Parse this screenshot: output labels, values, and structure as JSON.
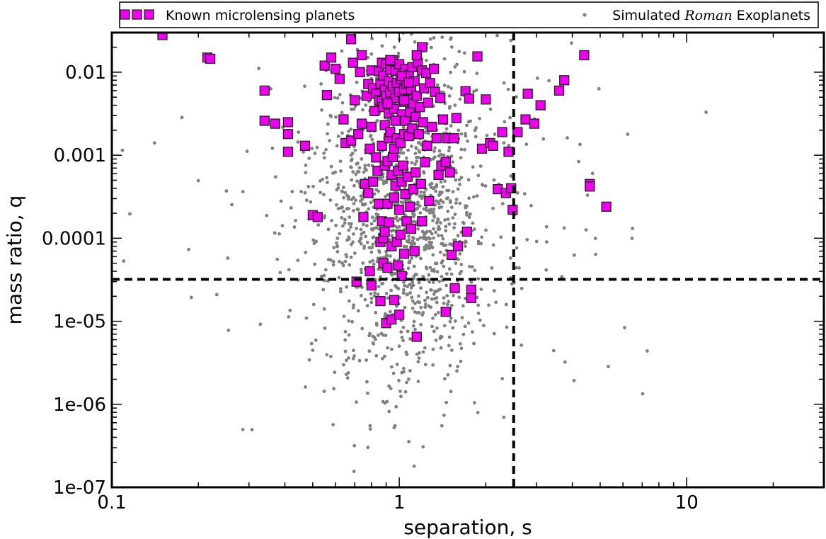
{
  "chart_data": {
    "type": "scatter",
    "xlabel": "separation, s",
    "ylabel": "mass ratio, q",
    "x_scale": "log",
    "y_scale": "log",
    "xlim": [
      0.1,
      30
    ],
    "ylim": [
      1e-07,
      0.03
    ],
    "x_ticks": [
      "0.1",
      "1",
      "10"
    ],
    "y_ticks": [
      "1e-07",
      "1e-06",
      "1e-05",
      "0.0001",
      "0.001",
      "0.01"
    ],
    "reference_lines": {
      "x": 2.5,
      "y": 3.2e-05
    },
    "grid": false,
    "legend_position": "top",
    "legend": {
      "known_label": "Known microlensing planets",
      "simulated_prefix": "Simulated ",
      "simulated_italic": "Roman",
      "simulated_suffix": " Exoplanets"
    },
    "colors": {
      "known_fill": "#ee00ee",
      "known_edge": "#222222",
      "simulated": "#808080",
      "ref_line": "#000000"
    },
    "series": [
      {
        "name": "Known microlensing planets",
        "marker": "square",
        "points": [
          [
            0.15,
            0.028
          ],
          [
            0.215,
            0.015
          ],
          [
            0.22,
            0.0145
          ],
          [
            0.34,
            0.006
          ],
          [
            0.34,
            0.0026
          ],
          [
            0.37,
            0.0024
          ],
          [
            0.41,
            0.0025
          ],
          [
            0.41,
            0.0018
          ],
          [
            0.41,
            0.0011
          ],
          [
            0.47,
            0.0013
          ],
          [
            0.5,
            0.00019
          ],
          [
            0.52,
            0.00018
          ],
          [
            0.55,
            0.012
          ],
          [
            0.56,
            0.0053
          ],
          [
            0.58,
            0.015
          ],
          [
            0.6,
            0.011
          ],
          [
            0.62,
            0.0083
          ],
          [
            0.64,
            0.0027
          ],
          [
            0.65,
            0.0014
          ],
          [
            0.68,
            0.025
          ],
          [
            0.68,
            0.0015
          ],
          [
            0.69,
            0.013
          ],
          [
            0.7,
            0.0046
          ],
          [
            0.71,
            3e-05
          ],
          [
            0.72,
            0.0018
          ],
          [
            0.73,
            0.01
          ],
          [
            0.74,
            0.016
          ],
          [
            0.74,
            0.0024
          ],
          [
            0.75,
            0.00018
          ],
          [
            0.76,
            0.00045
          ],
          [
            0.77,
            0.0052
          ],
          [
            0.78,
            0.0072
          ],
          [
            0.78,
            0.00035
          ],
          [
            0.79,
            0.0012
          ],
          [
            0.79,
            4e-05
          ],
          [
            0.8,
            0.0105
          ],
          [
            0.8,
            0.0022
          ],
          [
            0.8,
            2.7e-05
          ],
          [
            0.81,
            0.0064
          ],
          [
            0.81,
            0.00048
          ],
          [
            0.82,
            0.0034
          ],
          [
            0.83,
            0.00094
          ],
          [
            0.83,
            0.0055
          ],
          [
            0.84,
            0.00065
          ],
          [
            0.85,
            0.0103
          ],
          [
            0.85,
            0.0046
          ],
          [
            0.85,
            0.00026
          ],
          [
            0.86,
            0.0073
          ],
          [
            0.86,
            9e-05
          ],
          [
            0.86,
            1.75e-05
          ],
          [
            0.87,
            0.013
          ],
          [
            0.87,
            0.0045
          ],
          [
            0.87,
            0.0013
          ],
          [
            0.87,
            0.00016
          ],
          [
            0.88,
            0.0091
          ],
          [
            0.88,
            0.0038
          ],
          [
            0.88,
            0.0001
          ],
          [
            0.88,
            5e-05
          ],
          [
            0.89,
            0.0062
          ],
          [
            0.89,
            0.0023
          ],
          [
            0.89,
            0.00075
          ],
          [
            0.89,
            0.00012
          ],
          [
            0.9,
            9.5e-06
          ],
          [
            0.9,
            0.0125
          ],
          [
            0.9,
            0.0052
          ],
          [
            0.91,
            0.00085
          ],
          [
            0.91,
            0.00026
          ],
          [
            0.91,
            4.4e-05
          ],
          [
            0.92,
            0.0078
          ],
          [
            0.92,
            0.0032
          ],
          [
            0.92,
            0.0016
          ],
          [
            0.92,
            0.000155
          ],
          [
            0.93,
            0.0106
          ],
          [
            0.93,
            0.0057
          ],
          [
            0.93,
            0.0019
          ],
          [
            0.94,
            0.0041
          ],
          [
            0.94,
            0.00058
          ],
          [
            0.94,
            8e-05
          ],
          [
            0.94,
            1.05e-05
          ],
          [
            0.95,
            0.0139
          ],
          [
            0.95,
            0.0068
          ],
          [
            0.95,
            0.00095
          ],
          [
            0.96,
            0.0036
          ],
          [
            0.96,
            0.0012
          ],
          [
            0.96,
            0.00031
          ],
          [
            0.96,
            1.8e-05
          ],
          [
            0.97,
            0.0104
          ],
          [
            0.97,
            0.0049
          ],
          [
            0.97,
            0.00043
          ],
          [
            0.98,
            0.0074
          ],
          [
            0.98,
            0.0016
          ],
          [
            0.98,
            9e-05
          ],
          [
            0.99,
            0.0026
          ],
          [
            0.99,
            0.00065
          ],
          [
            0.99,
            4.7e-05
          ],
          [
            1.0,
            0.0125
          ],
          [
            1.0,
            0.0058
          ],
          [
            1.0,
            0.00022
          ],
          [
            1.0,
            1.2e-05
          ],
          [
            1.01,
            0.0083
          ],
          [
            1.01,
            0.0014
          ],
          [
            1.01,
            0.00011
          ],
          [
            1.02,
            0.0031
          ],
          [
            1.02,
            0.00048
          ],
          [
            1.02,
            3.5e-05
          ],
          [
            1.03,
            0.0097
          ],
          [
            1.03,
            0.0044
          ],
          [
            1.03,
            0.00075
          ],
          [
            1.04,
            0.0062
          ],
          [
            1.04,
            0.0018
          ],
          [
            1.04,
            6.5e-05
          ],
          [
            1.05,
            0.011
          ],
          [
            1.05,
            0.0026
          ],
          [
            1.05,
            0.00034
          ],
          [
            1.06,
            0.0073
          ],
          [
            1.06,
            0.00016
          ],
          [
            1.07,
            0.0047
          ],
          [
            1.07,
            0.00055
          ],
          [
            1.08,
            0.0093
          ],
          [
            1.08,
            0.0017
          ],
          [
            1.09,
            0.0033
          ],
          [
            1.09,
            0.00024
          ],
          [
            1.1,
            0.0062
          ],
          [
            1.1,
            0.00013
          ],
          [
            1.11,
            0.0115
          ],
          [
            1.11,
            0.0021
          ],
          [
            1.12,
            0.0042
          ],
          [
            1.12,
            0.00039
          ],
          [
            1.13,
            0.0078
          ],
          [
            1.13,
            7e-05
          ],
          [
            1.14,
            0.0029
          ],
          [
            1.14,
            0.00062
          ],
          [
            1.15,
            0.0052
          ],
          [
            1.15,
            6.5e-06
          ],
          [
            1.16,
            0.013
          ],
          [
            1.17,
            0.0018
          ],
          [
            1.18,
            0.0038
          ],
          [
            1.19,
            0.00045
          ],
          [
            1.2,
            0.0105
          ],
          [
            1.2,
            0.00016
          ],
          [
            1.21,
            0.0025
          ],
          [
            1.22,
            0.0064
          ],
          [
            1.23,
            0.00082
          ],
          [
            1.24,
            0.0098
          ],
          [
            1.25,
            0.0013
          ],
          [
            1.26,
            0.0043
          ],
          [
            1.27,
            0.00028
          ],
          [
            1.28,
            0.0074
          ],
          [
            1.3,
            0.0022
          ],
          [
            1.32,
            0.011
          ],
          [
            1.33,
            0.0058
          ],
          [
            1.35,
            0.0016
          ],
          [
            1.37,
            0.00058
          ],
          [
            1.39,
            0.0049
          ],
          [
            1.4,
            0.00075
          ],
          [
            1.42,
            0.0027
          ],
          [
            1.45,
            0.00083
          ],
          [
            1.45,
            1.3e-05
          ],
          [
            1.47,
            0.0016
          ],
          [
            1.5,
            0.00062
          ],
          [
            1.52,
            6.3e-05
          ],
          [
            1.55,
            0.0016
          ],
          [
            1.56,
            2.5e-05
          ],
          [
            1.58,
            0.0028
          ],
          [
            1.6,
            8e-05
          ],
          [
            1.7,
            0.0059
          ],
          [
            1.72,
            0.00012
          ],
          [
            1.75,
            0.0048
          ],
          [
            1.78,
            2.4e-05
          ],
          [
            1.78,
            1.9e-05
          ],
          [
            1.87,
            0.0155
          ],
          [
            1.94,
            0.0012
          ],
          [
            2.0,
            0.0047
          ],
          [
            2.07,
            0.0014
          ],
          [
            2.12,
            0.0013
          ],
          [
            2.2,
            0.00039
          ],
          [
            2.28,
            0.0019
          ],
          [
            2.35,
            0.00035
          ],
          [
            2.4,
            0.0011
          ],
          [
            2.45,
            0.0004
          ],
          [
            2.48,
            0.00022
          ],
          [
            2.58,
            0.0019
          ],
          [
            2.75,
            0.0027
          ],
          [
            2.8,
            0.0055
          ],
          [
            2.95,
            0.0024
          ],
          [
            3.1,
            0.004
          ],
          [
            3.6,
            0.006
          ],
          [
            3.75,
            0.008
          ],
          [
            4.4,
            0.016
          ],
          [
            4.6,
            0.00045
          ],
          [
            4.6,
            0.00042
          ],
          [
            5.25,
            0.00024
          ],
          [
            1.2,
            0.02
          ],
          [
            1.15,
            0.016
          ],
          [
            1.02,
            0.009
          ],
          [
            0.93,
            0.014
          ],
          [
            1.08,
            0.0075
          ],
          [
            0.97,
            0.0026
          ],
          [
            1.04,
            0.0046
          ],
          [
            0.91,
            0.0042
          ]
        ]
      },
      {
        "name": "Simulated Roman Exoplanets",
        "marker": "dot",
        "generated_count": 1400
      }
    ]
  }
}
